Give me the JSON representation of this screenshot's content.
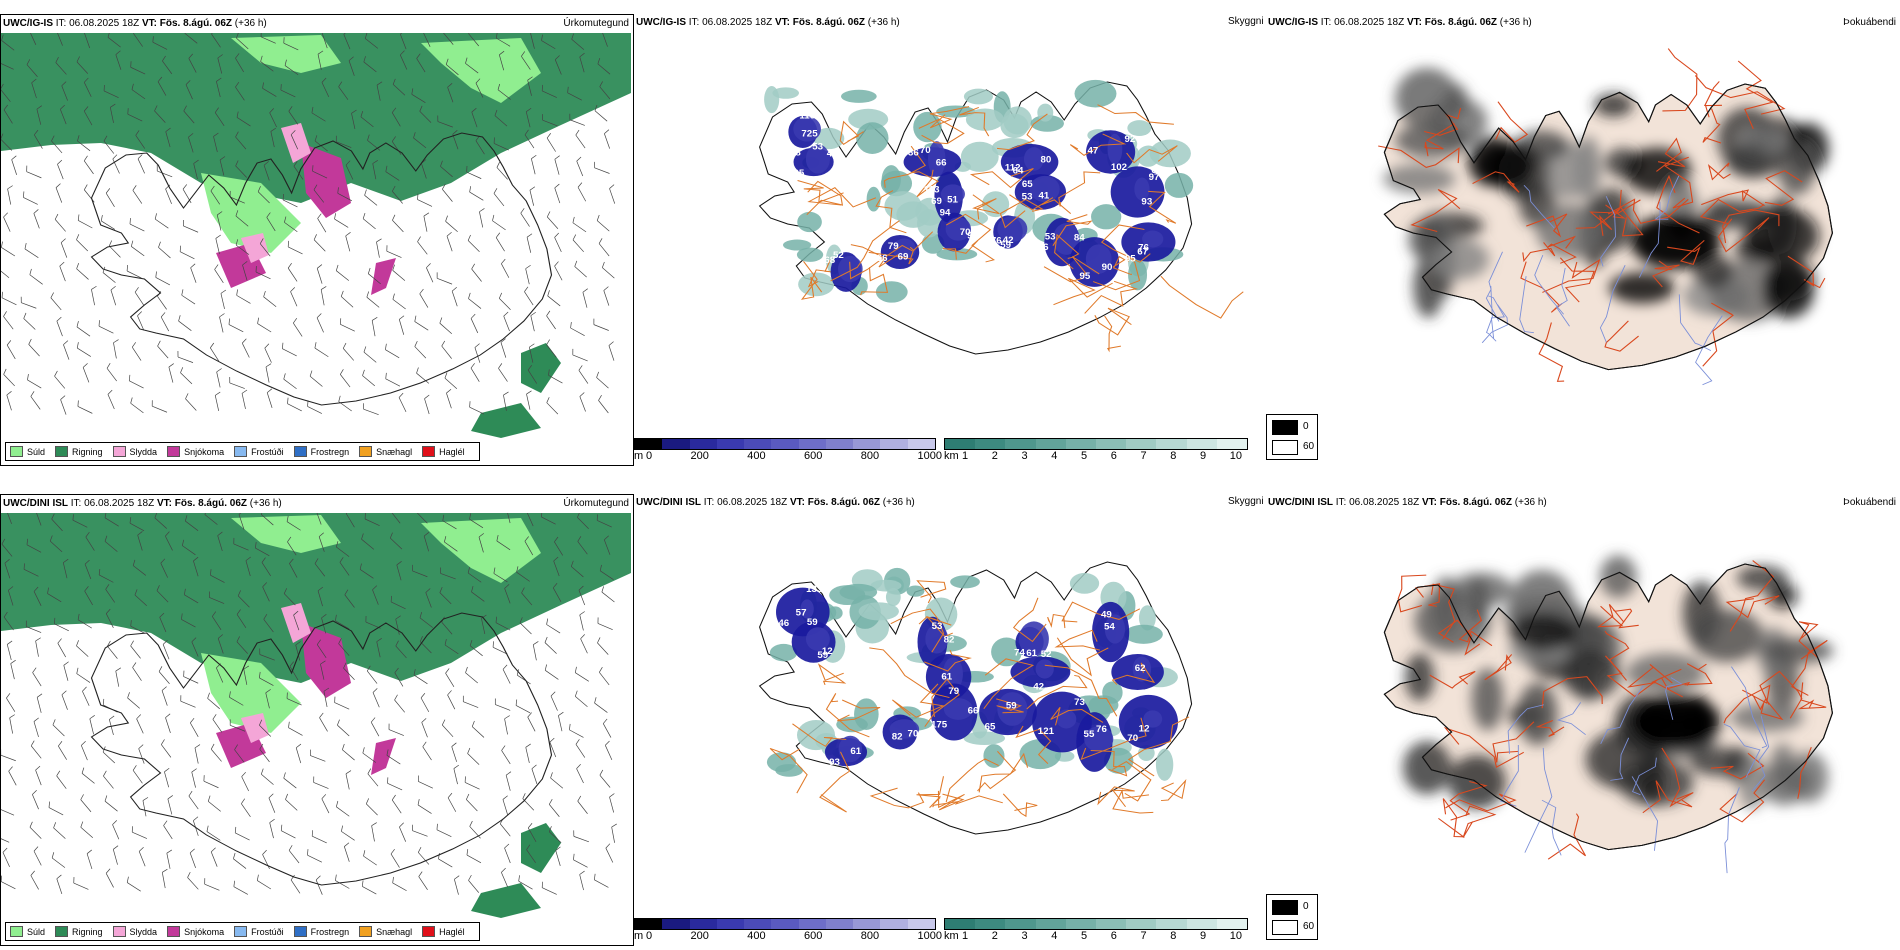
{
  "rows": [
    {
      "model": "UWC/IG-IS",
      "it_label": "IT:",
      "it_value": "06.08.2025 18Z",
      "vt_label": "VT:",
      "vt_value": "Fös. 8.ágú. 06Z",
      "lead": "(+36 h)"
    },
    {
      "model": "UWC/DINI ISL",
      "it_label": "IT:",
      "it_value": "06.08.2025 18Z",
      "vt_label": "VT:",
      "vt_value": "Fös. 8.ágú. 06Z",
      "lead": "(+36 h)"
    }
  ],
  "panel_titles": {
    "precip": "Úrkomutegund",
    "cloud": "Skyggni",
    "fog": "Þokuábendi"
  },
  "precip_legend": [
    {
      "label": "Súld",
      "color": "#90ee90"
    },
    {
      "label": "Rigning",
      "color": "#2e8b57"
    },
    {
      "label": "Slydda",
      "color": "#f4a6d7"
    },
    {
      "label": "Snjókoma",
      "color": "#c2399a"
    },
    {
      "label": "Frostúði",
      "color": "#87b9f0"
    },
    {
      "label": "Frostregn",
      "color": "#2f6fc6"
    },
    {
      "label": "Snæhagl",
      "color": "#f0a020"
    },
    {
      "label": "Haglél",
      "color": "#e0101a"
    }
  ],
  "cloud_colorbar": {
    "unit": "m",
    "ticks": [
      "0",
      "200",
      "400",
      "600",
      "800",
      "1000"
    ],
    "colors": [
      "#000000",
      "#1a1a80",
      "#2a2a9e",
      "#3a3ab0",
      "#4b4bb8",
      "#5a5ac0",
      "#6e6ec8",
      "#8080cc",
      "#9898d6",
      "#b0b0e0",
      "#c8c8ea"
    ]
  },
  "vis_colorbar": {
    "unit": "km",
    "ticks": [
      "1",
      "2",
      "3",
      "4",
      "5",
      "6",
      "7",
      "8",
      "9",
      "10"
    ],
    "colors": [
      "#2e7d73",
      "#3d8a80",
      "#4f978d",
      "#62a49a",
      "#76b1a8",
      "#8bbeb6",
      "#a1cbc4",
      "#b7d8d3",
      "#cde5e1",
      "#e2f1ee"
    ]
  },
  "fog_legend": {
    "high": "0",
    "low": "60"
  },
  "cloud_labels": [
    [
      "53",
      "58",
      "70",
      "51",
      "94",
      "79",
      "64",
      "65",
      "59",
      "46",
      "47",
      "61",
      "76",
      "95",
      "52",
      "116",
      "65",
      "66",
      "113",
      "97",
      "69",
      "112",
      "53",
      "76",
      "84",
      "92",
      "97",
      "95",
      "90",
      "68",
      "725",
      "47",
      "36",
      "69",
      "70",
      "66",
      "80",
      "41",
      "42",
      "53",
      "102",
      "93",
      "67"
    ],
    [
      "57",
      "59",
      "53",
      "61",
      "66",
      "70",
      "61",
      "42",
      "65",
      "121",
      "54",
      "62",
      "12",
      "55",
      "61",
      "133",
      "59",
      "82",
      "79",
      "175",
      "82",
      "74",
      "52",
      "59",
      "73",
      "49",
      "62",
      "70",
      "76",
      "93",
      "46",
      "12"
    ]
  ]
}
